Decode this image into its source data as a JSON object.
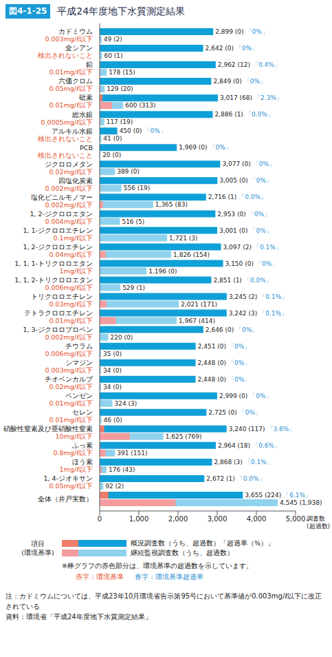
{
  "chart_data": {
    "type": "bar",
    "orientation": "horizontal",
    "data_labels": true,
    "grid": false,
    "figure_number": "図4-1-25",
    "title": "平成24年度地下水質測定結果",
    "categories": [
      "カドミウム",
      "全シアン",
      "鉛",
      "六価クロム",
      "砒素",
      "総水銀",
      "アルキル水銀",
      "PCB",
      "ジクロロメタン",
      "四塩化炭素",
      "塩化ビニルモノマー",
      "1, 2-ジクロロエタン",
      "1, 1-ジクロロエチレン",
      "1, 2-ジクロロエチレン",
      "1, 1, 1-トリクロロエタン",
      "1, 1, 2-トリクロロエタン",
      "トリクロロエチレン",
      "テトラクロロエチレン",
      "1, 3-ジクロロプロペン",
      "チウラム",
      "シマジン",
      "チオベンカルブ",
      "ベンゼン",
      "セレン",
      "硝酸性窒素及び亜硝酸性窒素",
      "ふっ素",
      "ほう素",
      "1, 4-ジオキサン",
      "全体（井戸実数）"
    ],
    "standards": [
      "0.003mg/ℓ以下",
      "検出されないこと",
      "0.01mg/ℓ以下",
      "0.05mg/ℓ以下",
      "0.01mg/ℓ以下",
      "0.0005mg/ℓ以下",
      "検出されないこと",
      "検出されないこと",
      "0.02mg/ℓ以下",
      "0.002mg/ℓ以下",
      "0.002mg/ℓ以下",
      "0.004mg/ℓ以下",
      "0.1mg/ℓ以下",
      "0.04mg/ℓ以下",
      "1mg/ℓ以下",
      "0.006mg/ℓ以下",
      "0.03mg/ℓ以下",
      "0.01mg/ℓ以下",
      "0.002mg/ℓ以下",
      "0.006mg/ℓ以下",
      "0.003mg/ℓ以下",
      "0.02mg/ℓ以下",
      "0.01mg/ℓ以下",
      "0.01mg/ℓ以下",
      "10mg/ℓ以下",
      "0.8mg/ℓ以下",
      "1mg/ℓ以下",
      "0.05mg/ℓ以下",
      null
    ],
    "series": [
      {
        "name": "概況調査数（うち、超過数）「超過率（%）」",
        "color": "#10a0d8",
        "values": [
          2899,
          2642,
          2962,
          2849,
          3017,
          2886,
          450,
          1969,
          3077,
          3005,
          2716,
          2953,
          3001,
          3097,
          3150,
          2851,
          3245,
          3242,
          2646,
          2451,
          2448,
          2448,
          2999,
          2725,
          3240,
          2964,
          2868,
          2672,
          3655
        ],
        "value_labels": [
          "2,899 (0)",
          "2,642 (0)",
          "2,962 (12)",
          "2,849 (0)",
          "3,017 (68)",
          "2,886 (1)",
          "450 (0)",
          "1,969 (0)",
          "3,077 (0)",
          "3,005 (0)",
          "2,716 (1)",
          "2,953 (0)",
          "3,001 (0)",
          "3,097 (2)",
          "3,150 (0)",
          "2,851 (1)",
          "3,245 (2)",
          "3,242 (3)",
          "2,646 (0)",
          "2,451 (0)",
          "2,448 (0)",
          "2,448 (0)",
          "2,999 (0)",
          "2,725 (0)",
          "3,240 (117)",
          "2,964 (18)",
          "2,868 (3)",
          "2,672 (1)",
          "3,655 (224)"
        ],
        "rate_labels": [
          "「0%」",
          "「0%」",
          "「0.4%」",
          "「0%」",
          "「2.3%」",
          "「0.0%」",
          "「0%」",
          "「0%」",
          "「0%」",
          "「0%」",
          "「0.0%」",
          "「0%」",
          "「0%」",
          "「0.1%」",
          "「0%」",
          "「0.0%」",
          "「0.1%」",
          "「0.1%」",
          "「0%」",
          "「0%」",
          "「0%」",
          "「0%」",
          "「0%」",
          "「0%」",
          "「3.6%」",
          "「0.6%」",
          "「0.1%」",
          "「0.0%」",
          "「6.1%」"
        ]
      },
      {
        "color": "#ee7d6a",
        "values": [
          0,
          0,
          12,
          0,
          68,
          1,
          0,
          0,
          0,
          0,
          1,
          0,
          0,
          2,
          0,
          1,
          2,
          3,
          0,
          0,
          0,
          0,
          0,
          0,
          117,
          18,
          3,
          1,
          224
        ]
      },
      {
        "name": "継続監視調査数（うち、超過数）",
        "color": "#8fd2ee",
        "values": [
          49,
          60,
          178,
          129,
          600,
          117,
          41,
          20,
          389,
          556,
          1365,
          516,
          1721,
          1826,
          1196,
          529,
          2021,
          1967,
          220,
          35,
          34,
          34,
          324,
          46,
          1625,
          391,
          176,
          92,
          4545
        ],
        "value_labels": [
          "49 (2)",
          "60 (1)",
          "178 (15)",
          "129 (20)",
          "600 (313)",
          "117 (19)",
          "41 (0)",
          "20 (0)",
          "389 (0)",
          "556 (19)",
          "1,365 (83)",
          "516 (5)",
          "1,721 (3)",
          "1,826 (154)",
          "1,196 (0)",
          "529 (1)",
          "2,021 (171)",
          "1,967 (414)",
          "220 (0)",
          "35 (0)",
          "34 (0)",
          "34 (0)",
          "324 (3)",
          "46 (0)",
          "1,625 (769)",
          "391 (151)",
          "176 (43)",
          "92 (2)",
          "4,545 (1,938)"
        ]
      },
      {
        "color": "#f59c9e",
        "values": [
          2,
          1,
          15,
          20,
          313,
          19,
          0,
          0,
          0,
          19,
          83,
          5,
          3,
          154,
          0,
          1,
          171,
          414,
          0,
          0,
          0,
          0,
          3,
          0,
          769,
          151,
          43,
          2,
          1938
        ]
      }
    ],
    "xlim": [
      0,
      5000
    ],
    "xticks": [
      0,
      {
        "value": 1000,
        "label": "1,000"
      },
      {
        "value": 2000,
        "label": "2,000"
      },
      {
        "value": 3000,
        "label": "3,000"
      },
      {
        "value": 4000,
        "label": "4,000"
      },
      {
        "value": 5000,
        "label": "5,000"
      }
    ],
    "xlabel": "調査数",
    "xlabel_sub": "(超過数)",
    "legend_label": "項目",
    "legend_sublabel": "(環境基準)",
    "legend_note": "※棒グラフの赤色部分は、環境基準の超過数を示しています。",
    "color_key": [
      {
        "label": "赤字：環境基準",
        "color": "#e4502c"
      },
      {
        "label": "青字：環境基準超過率",
        "color": "#2a8fd4"
      }
    ],
    "footnotes": [
      "注：カドミウムについては、平成23年10月環境省告示第95号において基準値が0.003mg/ℓ以下に改正されている",
      "資料：環境省「平成24年度地下水質測定結果」"
    ]
  }
}
